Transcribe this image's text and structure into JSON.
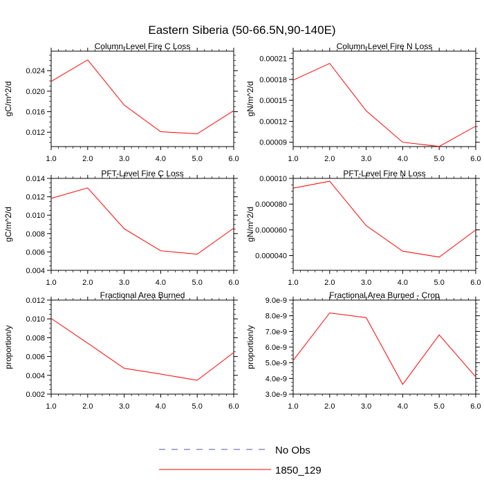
{
  "title": "Eastern Siberia (50-66.5N,90-140E)",
  "colors": {
    "series": "#ff0000",
    "obs": "#5555aa"
  },
  "legend": [
    {
      "label": "No Obs",
      "style": "dashed",
      "color": "#5555aa"
    },
    {
      "label": "1850_129",
      "style": "solid",
      "color": "#ff0000"
    }
  ],
  "chart_data": [
    {
      "type": "line",
      "title": "Column-Level Fire C Loss",
      "ylabel": "gC/m^2/d",
      "x": [
        1,
        2,
        3,
        4,
        5,
        6
      ],
      "xlim": [
        1,
        6
      ],
      "xticks": [
        "1.0",
        "2.0",
        "3.0",
        "4.0",
        "5.0",
        "6.0"
      ],
      "ylim": [
        0.0092,
        0.0278
      ],
      "yticks": [
        0.012,
        0.016,
        0.02,
        0.024
      ],
      "ytick_labels": [
        "0.012",
        "0.016",
        "0.020",
        "0.024"
      ],
      "series": [
        {
          "name": "1850_129",
          "values": [
            0.0219,
            0.0261,
            0.0173,
            0.0121,
            0.0117,
            0.0162
          ]
        }
      ]
    },
    {
      "type": "line",
      "title": "Column-Level Fire N Loss",
      "ylabel": "gN/m^2/d",
      "x": [
        1,
        2,
        3,
        4,
        5,
        6
      ],
      "xlim": [
        1,
        6
      ],
      "xticks": [
        "1.0",
        "2.0",
        "3.0",
        "4.0",
        "5.0",
        "6.0"
      ],
      "ylim": [
        8.38e-05,
        0.0002205
      ],
      "yticks": [
        9e-05,
        0.00012,
        0.00015,
        0.00018,
        0.00021
      ],
      "ytick_labels": [
        "0.00009",
        "0.00012",
        "0.00015",
        "0.00018",
        "0.00021"
      ],
      "series": [
        {
          "name": "1850_129",
          "values": [
            0.000179,
            0.000203,
            0.000135,
            9e-05,
            8.4e-05,
            0.000113
          ]
        }
      ]
    },
    {
      "type": "line",
      "title": "PFT-Level Fire C Loss",
      "ylabel": "gC/m^2/d",
      "x": [
        1,
        2,
        3,
        4,
        5,
        6
      ],
      "xlim": [
        1,
        6
      ],
      "xticks": [
        "1.0",
        "2.0",
        "3.0",
        "4.0",
        "5.0",
        "6.0"
      ],
      "ylim": [
        0.004,
        0.014
      ],
      "yticks": [
        0.004,
        0.006,
        0.008,
        0.01,
        0.012,
        0.014
      ],
      "ytick_labels": [
        "0.004",
        "0.006",
        "0.008",
        "0.010",
        "0.012",
        "0.014"
      ],
      "series": [
        {
          "name": "1850_129",
          "values": [
            0.01183,
            0.01296,
            0.00853,
            0.00613,
            0.00576,
            0.00859
          ]
        }
      ]
    },
    {
      "type": "line",
      "title": "PFT-Level Fire N Loss",
      "ylabel": "gN/m^2/d",
      "x": [
        1,
        2,
        3,
        4,
        5,
        6
      ],
      "xlim": [
        1,
        6
      ],
      "xticks": [
        "1.0",
        "2.0",
        "3.0",
        "4.0",
        "5.0",
        "6.0"
      ],
      "ylim": [
        2.85e-05,
        0.0001
      ],
      "yticks": [
        4e-05,
        6e-05,
        8e-05,
        0.0001
      ],
      "ytick_labels": [
        "0.000040",
        "0.000060",
        "0.000080",
        "0.00010"
      ],
      "series": [
        {
          "name": "1850_129",
          "values": [
            9.24e-05,
            9.78e-05,
            6.33e-05,
            4.34e-05,
            3.88e-05,
            5.99e-05
          ]
        }
      ]
    },
    {
      "type": "line",
      "title": "Fractional Area Burned",
      "ylabel": "proportion/y",
      "x": [
        1,
        2,
        3,
        4,
        5,
        6
      ],
      "xlim": [
        1,
        6
      ],
      "xticks": [
        "1.0",
        "2.0",
        "3.0",
        "4.0",
        "5.0",
        "6.0"
      ],
      "ylim": [
        0.002,
        0.012
      ],
      "yticks": [
        0.002,
        0.004,
        0.006,
        0.008,
        0.01,
        0.012
      ],
      "ytick_labels": [
        "0.002",
        "0.004",
        "0.006",
        "0.008",
        "0.010",
        "0.012"
      ],
      "series": [
        {
          "name": "1850_129",
          "values": [
            0.01005,
            0.00742,
            0.00475,
            0.00413,
            0.00347,
            0.00642
          ]
        }
      ]
    },
    {
      "type": "line",
      "title": "Fractional Area Burned - Crop",
      "ylabel": "proportion/y",
      "x": [
        1,
        2,
        3,
        4,
        5,
        6
      ],
      "xlim": [
        1,
        6
      ],
      "xticks": [
        "1.0",
        "2.0",
        "3.0",
        "4.0",
        "5.0",
        "6.0"
      ],
      "ylim": [
        3e-09,
        9e-09
      ],
      "yticks": [
        3e-09,
        4e-09,
        5e-09,
        6e-09,
        7e-09,
        8e-09,
        9e-09
      ],
      "ytick_labels": [
        "3.0e-9",
        "4.0e-9",
        "5.0e-9",
        "6.0e-9",
        "7.0e-9",
        "8.0e-9",
        "9.0e-9"
      ],
      "series": [
        {
          "name": "1850_129",
          "values": [
            5.15e-09,
            8.18e-09,
            7.88e-09,
            3.62e-09,
            6.78e-09,
            4.1e-09
          ]
        }
      ]
    }
  ]
}
